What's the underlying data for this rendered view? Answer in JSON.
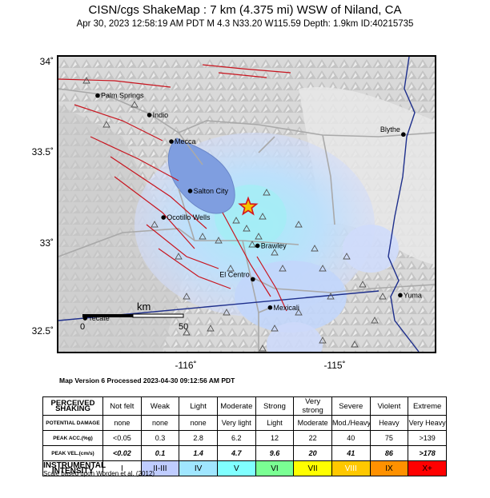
{
  "title": "CISN/cgs ShakeMap : 7 km (4.375 mi) WSW of Niland, CA",
  "subtitle": "Apr 30, 2023 12:58:19 AM PDT   M 4.3   N33.20 W115.59   Depth: 1.9km   ID:40215735",
  "map": {
    "lat_labels": [
      {
        "text": "34˚",
        "lat": 34.0
      },
      {
        "text": "33.5˚",
        "lat": 33.5
      },
      {
        "text": "33˚",
        "lat": 33.0
      },
      {
        "text": "32.5˚",
        "lat": 32.5
      }
    ],
    "lon_labels": [
      {
        "text": "-116˚",
        "lon": -116.0
      },
      {
        "text": "-115˚",
        "lon": -115.0
      }
    ],
    "places": [
      {
        "name": "Palm Springs",
        "lat": 33.83,
        "lon": -116.55
      },
      {
        "name": "Indio",
        "lat": 33.72,
        "lon": -116.22
      },
      {
        "name": "Mecca",
        "lat": 33.57,
        "lon": -116.08
      },
      {
        "name": "Blythe",
        "lat": 33.61,
        "lon": -114.6
      },
      {
        "name": "Salton City",
        "lat": 33.29,
        "lon": -115.96
      },
      {
        "name": "Ocotillo Wells",
        "lat": 33.14,
        "lon": -116.13
      },
      {
        "name": "Brawley",
        "lat": 32.98,
        "lon": -115.53
      },
      {
        "name": "El Centro",
        "lat": 32.79,
        "lon": -115.56
      },
      {
        "name": "Mexicali",
        "lat": 32.63,
        "lon": -115.45
      },
      {
        "name": "Yuma",
        "lat": 32.7,
        "lon": -114.62
      },
      {
        "name": "Tecate",
        "lat": 32.57,
        "lon": -116.63
      }
    ],
    "epicenter": {
      "lat": 33.2,
      "lon": -115.59
    },
    "scale_bar": {
      "unit": "km",
      "start": "0",
      "end": "50"
    }
  },
  "map_version": "Map Version 6 Processed 2023-04-30 09:12:56 AM PDT",
  "legend": {
    "headers": {
      "shaking": "PERCEIVED SHAKING",
      "damage": "POTENTIAL DAMAGE",
      "acc": "PEAK ACC.(%g)",
      "vel": "PEAK VEL.(cm/s)",
      "intensity": "INSTRUMENTAL INTENSITY"
    },
    "shaking": [
      "Not felt",
      "Weak",
      "Light",
      "Moderate",
      "Strong",
      "Very strong",
      "Severe",
      "Violent",
      "Extreme"
    ],
    "damage": [
      "none",
      "none",
      "none",
      "Very light",
      "Light",
      "Moderate",
      "Mod./Heavy",
      "Heavy",
      "Very Heavy"
    ],
    "acc": [
      "<0.05",
      "0.3",
      "2.8",
      "6.2",
      "12",
      "22",
      "40",
      "75",
      ">139"
    ],
    "vel": [
      "<0.02",
      "0.1",
      "1.4",
      "4.7",
      "9.6",
      "20",
      "41",
      "86",
      ">178"
    ],
    "intensity": [
      "I",
      "II-III",
      "IV",
      "V",
      "VI",
      "VII",
      "VIII",
      "IX",
      "X+"
    ],
    "colors": [
      "#ffffff",
      "#bfccff",
      "#a0e6ff",
      "#80ffff",
      "#7aff93",
      "#ffff00",
      "#ffc800",
      "#ff9100",
      "#ff0000"
    ],
    "credit": "Scale based upon Worden et al. (2012)"
  }
}
